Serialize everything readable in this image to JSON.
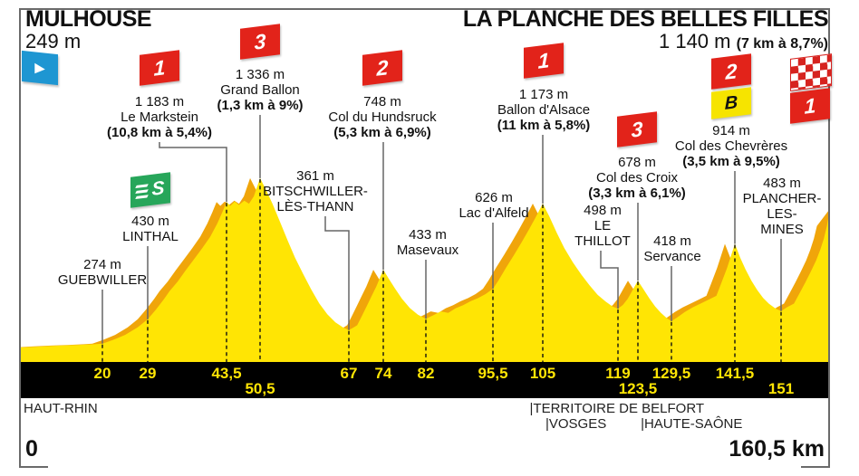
{
  "header": {
    "start_name": "MULHOUSE",
    "start_elevation": "249 m",
    "finish_name": "LA PLANCHE DES BELLES FILLES",
    "finish_elevation": "1 140 m",
    "finish_gradient": "(7 km à 8,7%)"
  },
  "axis": {
    "unit": "km",
    "start_label": "0",
    "end_label": "160,5 km",
    "ticks": [
      {
        "label": "20",
        "km": 20,
        "row": 1
      },
      {
        "label": "29",
        "km": 29,
        "row": 1
      },
      {
        "label": "43,5",
        "km": 43.5,
        "row": 1
      },
      {
        "label": "50,5",
        "km": 50.5,
        "row": 2
      },
      {
        "label": "67",
        "km": 67,
        "row": 1
      },
      {
        "label": "74",
        "km": 74,
        "row": 1
      },
      {
        "label": "82",
        "km": 82,
        "row": 1
      },
      {
        "label": "95,5",
        "km": 95.5,
        "row": 1
      },
      {
        "label": "105",
        "km": 105,
        "row": 1
      },
      {
        "label": "119",
        "km": 119,
        "row": 1
      },
      {
        "label": "123,5",
        "km": 123.5,
        "row": 2
      },
      {
        "label": "129,5",
        "km": 129.5,
        "row": 1
      },
      {
        "label": "141,5",
        "km": 141.5,
        "row": 1
      },
      {
        "label": "151",
        "km": 151,
        "row": 2
      }
    ]
  },
  "regions": [
    {
      "label": "HAUT-RHIN",
      "km": 0.8,
      "row": 1
    },
    {
      "label": "|TERRITOIRE DE BELFORT",
      "km": 102.5,
      "row": 1
    },
    {
      "label": "|VOSGES",
      "km": 105.5,
      "row": 2
    },
    {
      "label": "|HAUTE-SAÔNE",
      "km": 124,
      "row": 2
    }
  ],
  "points": [
    {
      "id": "guebwiller",
      "km": 20,
      "elevation": "274 m",
      "name": "GUEBWILLER",
      "flags": []
    },
    {
      "id": "linthal",
      "km": 29,
      "elevation": "430 m",
      "name": "LINTHAL",
      "flags": [
        "sprint"
      ]
    },
    {
      "id": "le-markstein",
      "km": 43.5,
      "elevation": "1 183 m",
      "name": "Le Markstein",
      "gradient": "(10,8 km à 5,4%)",
      "flags": [
        "cat1"
      ]
    },
    {
      "id": "grand-ballon",
      "km": 50.5,
      "elevation": "1 336 m",
      "name": "Grand Ballon",
      "gradient": "(1,3 km à 9%)",
      "flags": [
        "cat3"
      ]
    },
    {
      "id": "bitschwiller",
      "km": 67,
      "elevation": "361 m",
      "name": "BITSCHWILLER-\nLÈS-THANN",
      "flags": []
    },
    {
      "id": "col-du-hundsruck",
      "km": 74,
      "elevation": "748 m",
      "name": "Col du Hundsruck",
      "gradient": "(5,3 km à 6,9%)",
      "flags": [
        "cat2"
      ]
    },
    {
      "id": "masevaux",
      "km": 82,
      "elevation": "433 m",
      "name": "Masevaux",
      "flags": []
    },
    {
      "id": "lac-d-alfeld",
      "km": 95.5,
      "elevation": "626 m",
      "name": "Lac d'Alfeld",
      "flags": []
    },
    {
      "id": "ballon-d-alsace",
      "km": 105,
      "elevation": "1 173 m",
      "name": "Ballon d'Alsace",
      "gradient": "(11 km à 5,8%)",
      "flags": [
        "cat1"
      ]
    },
    {
      "id": "le-thillot",
      "km": 119,
      "elevation": "498 m",
      "name": "LE\nTHILLOT",
      "flags": []
    },
    {
      "id": "col-des-croix",
      "km": 123.5,
      "elevation": "678 m",
      "name": "Col des Croix",
      "gradient": "(3,3 km à 6,1%)",
      "flags": [
        "cat3"
      ]
    },
    {
      "id": "servance",
      "km": 129.5,
      "elevation": "418 m",
      "name": "Servance",
      "flags": []
    },
    {
      "id": "col-des-chevreres",
      "km": 141.5,
      "elevation": "914 m",
      "name": "Col des Chevrères",
      "gradient": "(3,5 km à 9,5%)",
      "flags": [
        "cat2",
        "bonus"
      ]
    },
    {
      "id": "plancher-les-mines",
      "km": 151,
      "elevation": "483 m",
      "name": "PLANCHER-\nLES-\nMINES",
      "flags": []
    }
  ],
  "markers": {
    "start_flag": "depart-play-flag",
    "finish_flags": [
      "checkered",
      "cat1"
    ]
  },
  "flag_labels": {
    "cat1": "1",
    "cat2": "2",
    "cat3": "3",
    "bonus": "B",
    "sprint": "S",
    "start": "▶"
  },
  "colors": {
    "profile_yellow": "#ffe504",
    "steep_orange": "#f0a50a",
    "flag_red": "#e2231a",
    "sprint_green": "#27a65a",
    "start_blue": "#1e96d2",
    "bonus_yellow": "#f6e400",
    "band_black": "#000000",
    "tick_text_yellow": "#ffe504"
  },
  "chart_data": {
    "type": "area",
    "title": "Stage profile Mulhouse - La Planche des Belles Filles",
    "x_unit": "km",
    "y_unit": "m",
    "x_range": [
      0,
      160.5
    ],
    "start_elevation_m": 249,
    "finish_elevation_m": 1140,
    "total_distance_label": "160,5 km",
    "profile": [
      [
        0,
        249
      ],
      [
        3,
        252
      ],
      [
        6,
        256
      ],
      [
        10,
        261
      ],
      [
        14,
        265
      ],
      [
        18,
        270
      ],
      [
        20,
        274
      ],
      [
        22,
        296
      ],
      [
        24.5,
        330
      ],
      [
        27,
        378
      ],
      [
        29,
        430
      ],
      [
        30.5,
        492
      ],
      [
        32,
        560
      ],
      [
        33,
        610
      ],
      [
        34.5,
        672
      ],
      [
        36,
        745
      ],
      [
        37.5,
        815
      ],
      [
        39,
        885
      ],
      [
        40.5,
        960
      ],
      [
        41.8,
        1045
      ],
      [
        42.7,
        1115
      ],
      [
        43.5,
        1183
      ],
      [
        44.3,
        1158
      ],
      [
        45.2,
        1186
      ],
      [
        46.1,
        1164
      ],
      [
        47.2,
        1192
      ],
      [
        48.2,
        1172
      ],
      [
        49.2,
        1219
      ],
      [
        50.5,
        1336
      ],
      [
        51.6,
        1262
      ],
      [
        52.8,
        1172
      ],
      [
        54.2,
        1056
      ],
      [
        55.6,
        938
      ],
      [
        57,
        826
      ],
      [
        58.5,
        722
      ],
      [
        60,
        622
      ],
      [
        61.5,
        532
      ],
      [
        63,
        462
      ],
      [
        64.5,
        410
      ],
      [
        66,
        376
      ],
      [
        67,
        361
      ],
      [
        68,
        378
      ],
      [
        68.7,
        392
      ],
      [
        69.6,
        448
      ],
      [
        70.6,
        512
      ],
      [
        71.6,
        578
      ],
      [
        72.6,
        642
      ],
      [
        73.3,
        696
      ],
      [
        74,
        748
      ],
      [
        75,
        692
      ],
      [
        76.2,
        628
      ],
      [
        77.5,
        562
      ],
      [
        79,
        502
      ],
      [
        80.5,
        460
      ],
      [
        82,
        433
      ],
      [
        83.5,
        456
      ],
      [
        85,
        481
      ],
      [
        86.5,
        471
      ],
      [
        88,
        501
      ],
      [
        89.5,
        521
      ],
      [
        91,
        546
      ],
      [
        92.5,
        566
      ],
      [
        94,
        592
      ],
      [
        95.5,
        626
      ],
      [
        96.6,
        682
      ],
      [
        98,
        762
      ],
      [
        99.5,
        842
      ],
      [
        101,
        926
      ],
      [
        102.4,
        1008
      ],
      [
        103.6,
        1082
      ],
      [
        105,
        1173
      ],
      [
        106.2,
        1092
      ],
      [
        107.6,
        986
      ],
      [
        109,
        888
      ],
      [
        110.6,
        796
      ],
      [
        112.2,
        716
      ],
      [
        113.7,
        648
      ],
      [
        115.2,
        588
      ],
      [
        116.7,
        544
      ],
      [
        118,
        512
      ],
      [
        119,
        498
      ],
      [
        120.1,
        522
      ],
      [
        121.2,
        562
      ],
      [
        122.4,
        622
      ],
      [
        123.5,
        678
      ],
      [
        124.5,
        622
      ],
      [
        125.6,
        562
      ],
      [
        126.6,
        512
      ],
      [
        127.6,
        472
      ],
      [
        128.6,
        440
      ],
      [
        129.5,
        418
      ],
      [
        130.6,
        442
      ],
      [
        132,
        476
      ],
      [
        133.5,
        506
      ],
      [
        135,
        531
      ],
      [
        136.5,
        556
      ],
      [
        138,
        581
      ],
      [
        139,
        668
      ],
      [
        140,
        758
      ],
      [
        140.8,
        840
      ],
      [
        141.5,
        914
      ],
      [
        142.6,
        826
      ],
      [
        143.7,
        750
      ],
      [
        144.9,
        678
      ],
      [
        146.1,
        618
      ],
      [
        147.3,
        568
      ],
      [
        148.5,
        530
      ],
      [
        149.8,
        500
      ],
      [
        151,
        483
      ],
      [
        152.2,
        508
      ],
      [
        153.5,
        531
      ],
      [
        154.6,
        598
      ],
      [
        155.7,
        666
      ],
      [
        156.8,
        738
      ],
      [
        157.8,
        808
      ],
      [
        158.6,
        876
      ],
      [
        159.3,
        948
      ],
      [
        159.9,
        1030
      ],
      [
        160.5,
        1140
      ]
    ]
  }
}
